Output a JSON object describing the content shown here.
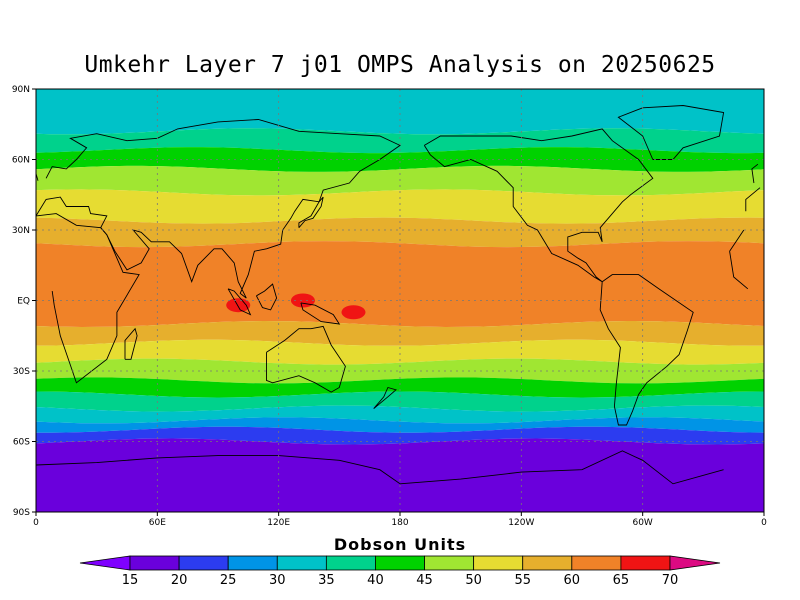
{
  "title": "Umkehr Layer 7 j01 OMPS Analysis on 20250625",
  "map": {
    "lat_labels": [
      "90N",
      "60N",
      "30N",
      "EQ",
      "30S",
      "60S",
      "90S"
    ],
    "lon_labels": [
      "0",
      "60E",
      "120E",
      "180",
      "120W",
      "60W",
      "0"
    ],
    "grid": true,
    "coastlines": true
  },
  "colorbar": {
    "title": "Dobson Units",
    "ticks": [
      "15",
      "20",
      "25",
      "30",
      "35",
      "40",
      "45",
      "50",
      "55",
      "60",
      "65",
      "70"
    ],
    "colors": [
      "#7f00ff",
      "#6a00dc",
      "#2c3cf0",
      "#0094e6",
      "#00c2c8",
      "#00d28c",
      "#00d200",
      "#a0e632",
      "#e6dc32",
      "#e6af2d",
      "#f08228",
      "#f01414",
      "#dc0a82"
    ]
  },
  "field": {
    "bands": [
      {
        "lat_top": 90,
        "lat_bot": 72,
        "color": "#00c2c8"
      },
      {
        "lat_top": 72,
        "lat_bot": 64,
        "color": "#00d28c"
      },
      {
        "lat_top": 64,
        "lat_bot": 56,
        "color": "#00d200"
      },
      {
        "lat_top": 56,
        "lat_bot": 46,
        "color": "#a0e632"
      },
      {
        "lat_top": 46,
        "lat_bot": 34,
        "color": "#e6dc32"
      },
      {
        "lat_top": 34,
        "lat_bot": 24,
        "color": "#e6af2d"
      },
      {
        "lat_top": 24,
        "lat_bot": -10,
        "color": "#f08228"
      },
      {
        "lat_top": -10,
        "lat_bot": -18,
        "color": "#e6af2d"
      },
      {
        "lat_top": -18,
        "lat_bot": -26,
        "color": "#e6dc32"
      },
      {
        "lat_top": -26,
        "lat_bot": -34,
        "color": "#a0e632"
      },
      {
        "lat_top": -34,
        "lat_bot": -40,
        "color": "#00d200"
      },
      {
        "lat_top": -40,
        "lat_bot": -46,
        "color": "#00d28c"
      },
      {
        "lat_top": -46,
        "lat_bot": -51,
        "color": "#00c2c8"
      },
      {
        "lat_top": -51,
        "lat_bot": -55,
        "color": "#0094e6"
      },
      {
        "lat_top": -55,
        "lat_bot": -60,
        "color": "#2c3cf0"
      },
      {
        "lat_top": -60,
        "lat_bot": -90,
        "color": "#6a00dc"
      }
    ],
    "maxima": [
      {
        "lon": 100,
        "lat": -2,
        "color": "#f01414"
      },
      {
        "lon": 132,
        "lat": 0,
        "color": "#f01414"
      },
      {
        "lon": 157,
        "lat": -5,
        "color": "#f01414"
      }
    ]
  }
}
